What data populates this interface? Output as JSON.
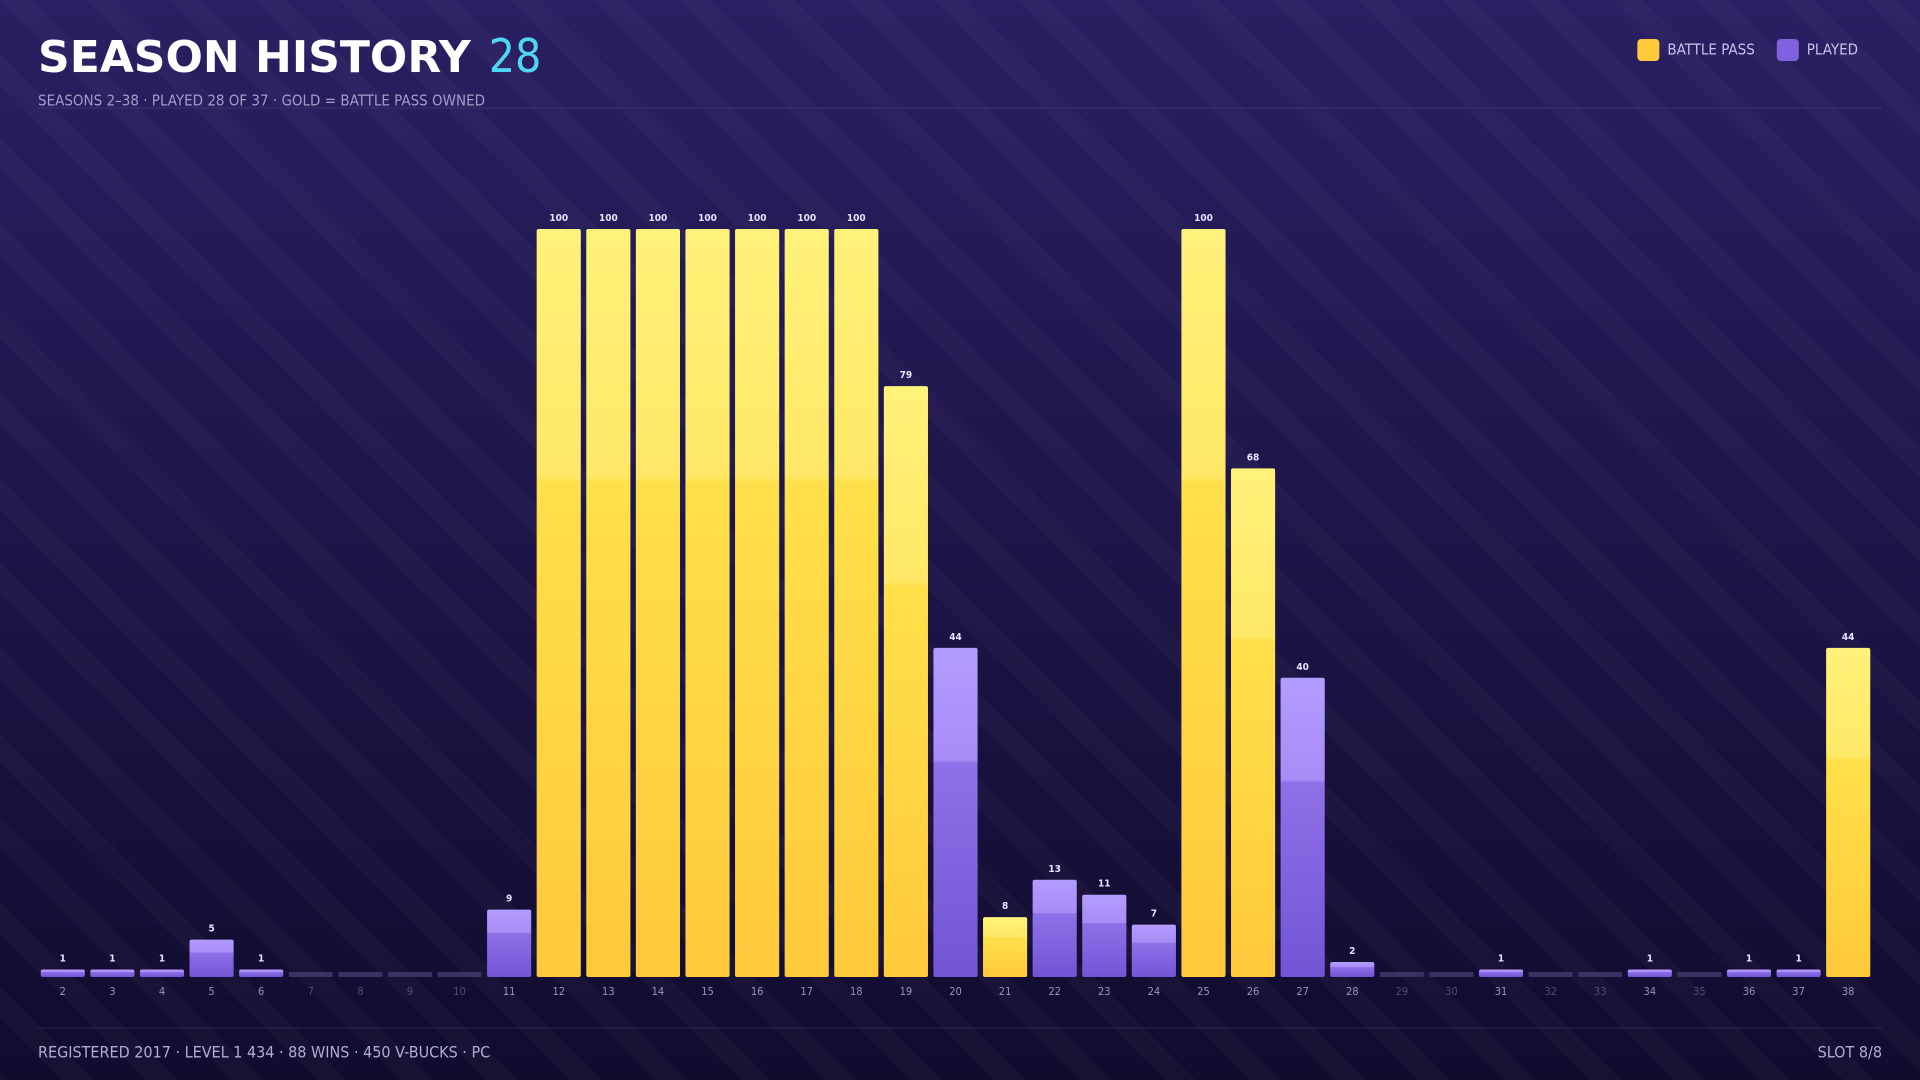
{
  "chart_data": {
    "type": "bar",
    "title": "SEASON HISTORY",
    "count": 28,
    "subtitle": "SEASONS 2–38 · PLAYED 28 OF 37 · GOLD = BATTLE PASS OWNED",
    "footer_left": "REGISTERED 2017 · LEVEL 1 434 · 88 WINS · 450 V-BUCKS · PC",
    "footer_right": "SLOT 8/8",
    "legend": "top-right",
    "categories": [
      "2",
      "3",
      "4",
      "5",
      "6",
      "7",
      "8",
      "9",
      "10",
      "11",
      "12",
      "13",
      "14",
      "15",
      "16",
      "17",
      "18",
      "19",
      "20",
      "21",
      "22",
      "23",
      "24",
      "25",
      "26",
      "27",
      "28",
      "29",
      "30",
      "31",
      "32",
      "33",
      "34",
      "35",
      "36",
      "37",
      "38"
    ],
    "series": [
      {
        "name": "BATTLE PASS",
        "color": "#ffc93c",
        "values": [
          null,
          null,
          null,
          null,
          null,
          null,
          null,
          null,
          null,
          null,
          100,
          100,
          100,
          100,
          100,
          100,
          100,
          79,
          null,
          8,
          null,
          null,
          null,
          100,
          68,
          null,
          null,
          null,
          null,
          null,
          null,
          null,
          null,
          null,
          null,
          null,
          44
        ]
      },
      {
        "name": "PLAYED",
        "color": "#7e62e0",
        "values": [
          1,
          1,
          1,
          5,
          1,
          null,
          null,
          null,
          null,
          9,
          null,
          null,
          null,
          null,
          null,
          null,
          null,
          null,
          44,
          null,
          13,
          11,
          7,
          null,
          null,
          40,
          2,
          null,
          null,
          1,
          null,
          null,
          1,
          null,
          1,
          1,
          null
        ]
      }
    ]
  }
}
